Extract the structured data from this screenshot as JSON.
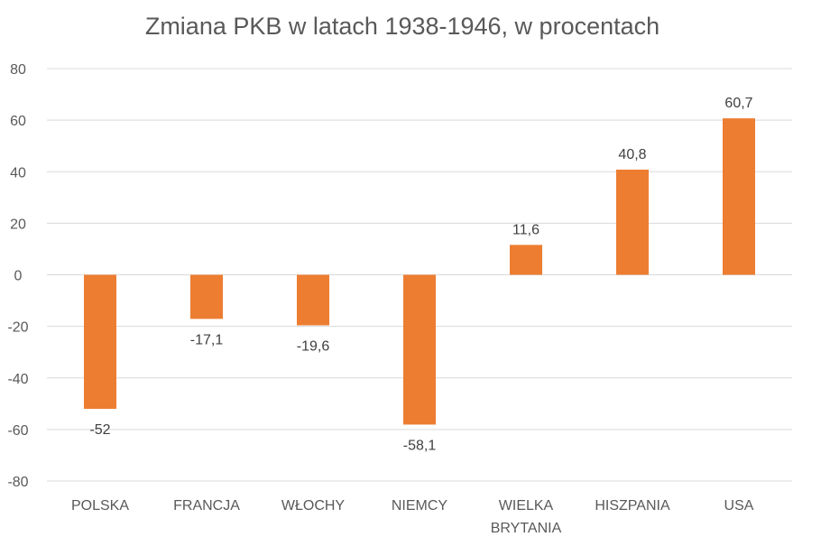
{
  "chart_data": {
    "type": "bar",
    "title": "Zmiana PKB w latach 1938-1946, w procentach",
    "categories": [
      [
        "POLSKA"
      ],
      [
        "FRANCJA"
      ],
      [
        "WŁOCHY"
      ],
      [
        "NIEMCY"
      ],
      [
        "WIELKA",
        "BRYTANIA"
      ],
      [
        "HISZPANIA"
      ],
      [
        "USA"
      ]
    ],
    "values": [
      -52,
      -17.1,
      -19.6,
      -58.1,
      11.6,
      40.8,
      60.7
    ],
    "data_labels": [
      "-52",
      "-17,1",
      "-19,6",
      "-58,1",
      "11,6",
      "40,8",
      "60,7"
    ],
    "ylim": [
      -80,
      80
    ],
    "yticks": [
      "-80",
      "-60",
      "-40",
      "-20",
      "0",
      "20",
      "40",
      "60",
      "80"
    ],
    "ytick_values": [
      -80,
      -60,
      -40,
      -20,
      0,
      20,
      40,
      60,
      80
    ],
    "grid": true,
    "bar_color": "#ED7D31",
    "xlabel": "",
    "ylabel": ""
  }
}
